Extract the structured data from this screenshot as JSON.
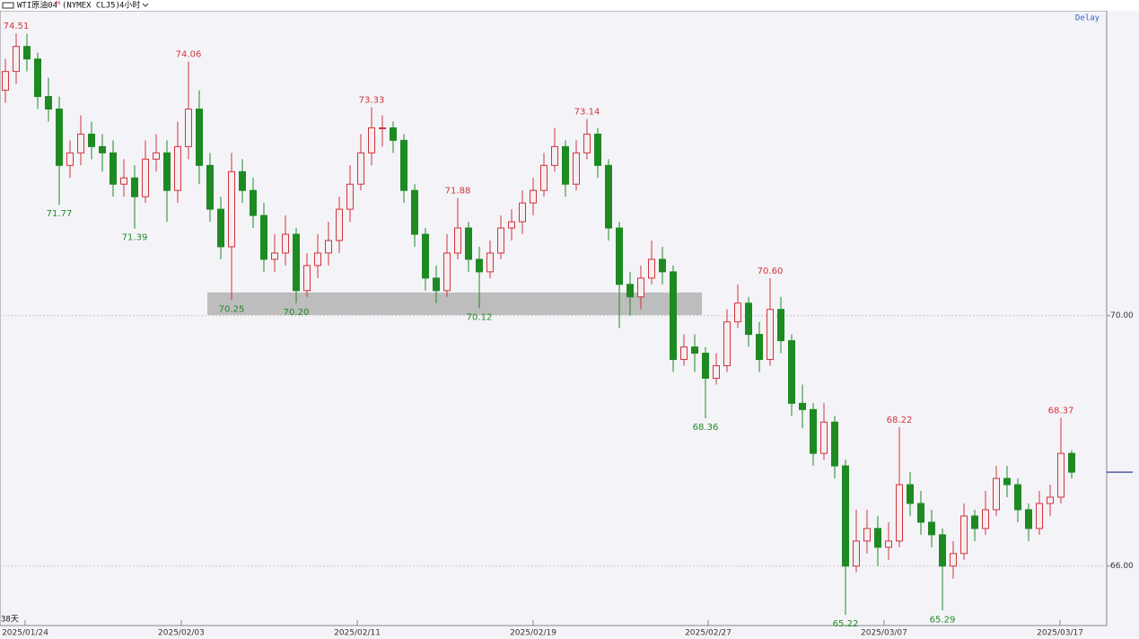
{
  "header": {
    "symbol": "WTI原油04",
    "suffix": "M",
    "exchange": "(NYMEX CLJ5)",
    "period": "4小时",
    "status": "Delay",
    "footer": "38天"
  },
  "chart_data": {
    "type": "candlestick",
    "up_color": "#d0343c",
    "down_color": "#1d8a22",
    "grid": true,
    "ylim": [
      65.05,
      74.87
    ],
    "yticks": [
      {
        "value": 66,
        "label": "66.00"
      },
      {
        "value": 70,
        "label": "70.00"
      }
    ],
    "xticks": [
      {
        "value": 1.83,
        "label": "2025/01/24"
      },
      {
        "value": 16.33,
        "label": "2025/02/03"
      },
      {
        "value": 32.67,
        "label": "2025/02/11"
      },
      {
        "value": 49,
        "label": "2025/02/19"
      },
      {
        "value": 65.25,
        "label": "2025/02/27"
      },
      {
        "value": 81.58,
        "label": "2025/03/07"
      },
      {
        "value": 97.92,
        "label": "2025/03/17"
      }
    ],
    "candles": [
      [
        73.6,
        74.1,
        73.4,
        73.9
      ],
      [
        73.9,
        74.51,
        73.7,
        74.3
      ],
      [
        74.3,
        74.5,
        73.9,
        74.1
      ],
      [
        74.1,
        74.2,
        73.3,
        73.5
      ],
      [
        73.5,
        73.8,
        73.1,
        73.3
      ],
      [
        73.3,
        73.5,
        71.77,
        72.4
      ],
      [
        72.4,
        72.8,
        72.2,
        72.6
      ],
      [
        72.6,
        73.2,
        72.4,
        72.9
      ],
      [
        72.9,
        73.1,
        72.5,
        72.7
      ],
      [
        72.7,
        72.9,
        72.3,
        72.6
      ],
      [
        72.6,
        72.8,
        71.9,
        72.1
      ],
      [
        72.1,
        72.5,
        71.9,
        72.2
      ],
      [
        72.2,
        72.4,
        71.39,
        71.9
      ],
      [
        71.9,
        72.8,
        71.8,
        72.5
      ],
      [
        72.5,
        72.9,
        72.3,
        72.6
      ],
      [
        72.6,
        72.8,
        71.5,
        72.0
      ],
      [
        72.0,
        73.1,
        71.8,
        72.7
      ],
      [
        72.7,
        74.06,
        72.5,
        73.3
      ],
      [
        73.3,
        73.6,
        72.1,
        72.4
      ],
      [
        72.4,
        72.6,
        71.5,
        71.7
      ],
      [
        71.7,
        71.9,
        70.9,
        71.1
      ],
      [
        71.1,
        72.6,
        70.25,
        72.3
      ],
      [
        72.3,
        72.5,
        71.8,
        72.0
      ],
      [
        72.0,
        72.2,
        71.4,
        71.6
      ],
      [
        71.6,
        71.8,
        70.7,
        70.9
      ],
      [
        70.9,
        71.3,
        70.7,
        71.0
      ],
      [
        71.0,
        71.6,
        70.8,
        71.3
      ],
      [
        71.3,
        71.4,
        70.2,
        70.4
      ],
      [
        70.4,
        71.0,
        70.3,
        70.8
      ],
      [
        70.8,
        71.3,
        70.6,
        71.0
      ],
      [
        71.0,
        71.5,
        70.8,
        71.2
      ],
      [
        71.2,
        71.9,
        71.0,
        71.7
      ],
      [
        71.7,
        72.4,
        71.5,
        72.1
      ],
      [
        72.1,
        72.9,
        72.0,
        72.6
      ],
      [
        72.6,
        73.33,
        72.4,
        73.0
      ],
      [
        73.0,
        73.2,
        72.7,
        73.0
      ],
      [
        73.0,
        73.1,
        72.6,
        72.8
      ],
      [
        72.8,
        72.9,
        71.8,
        72.0
      ],
      [
        72.0,
        72.1,
        71.1,
        71.3
      ],
      [
        71.3,
        71.4,
        70.4,
        70.6
      ],
      [
        70.6,
        70.8,
        70.2,
        70.4
      ],
      [
        70.4,
        71.3,
        70.3,
        71.0
      ],
      [
        71.0,
        71.88,
        70.9,
        71.4
      ],
      [
        71.4,
        71.5,
        70.7,
        70.9
      ],
      [
        70.9,
        71.1,
        70.12,
        70.7
      ],
      [
        70.7,
        71.2,
        70.6,
        71.0
      ],
      [
        71.0,
        71.6,
        70.9,
        71.4
      ],
      [
        71.4,
        71.7,
        71.2,
        71.5
      ],
      [
        71.5,
        72.0,
        71.3,
        71.8
      ],
      [
        71.8,
        72.2,
        71.6,
        72.0
      ],
      [
        72.0,
        72.6,
        71.9,
        72.4
      ],
      [
        72.4,
        73.0,
        72.3,
        72.7
      ],
      [
        72.7,
        72.8,
        71.9,
        72.1
      ],
      [
        72.1,
        72.8,
        72.0,
        72.6
      ],
      [
        72.6,
        73.14,
        72.5,
        72.9
      ],
      [
        72.9,
        73.0,
        72.2,
        72.4
      ],
      [
        72.4,
        72.5,
        71.2,
        71.4
      ],
      [
        71.4,
        71.5,
        69.8,
        70.5
      ],
      [
        70.5,
        70.7,
        70.0,
        70.3
      ],
      [
        70.3,
        70.8,
        70.1,
        70.6
      ],
      [
        70.6,
        71.2,
        70.5,
        70.9
      ],
      [
        70.9,
        71.1,
        70.5,
        70.7
      ],
      [
        70.7,
        70.8,
        69.1,
        69.3
      ],
      [
        69.3,
        69.7,
        69.2,
        69.5
      ],
      [
        69.5,
        69.7,
        69.1,
        69.4
      ],
      [
        69.4,
        69.5,
        68.36,
        69.0
      ],
      [
        69.0,
        69.4,
        68.9,
        69.2
      ],
      [
        69.2,
        70.1,
        69.1,
        69.9
      ],
      [
        69.9,
        70.5,
        69.8,
        70.2
      ],
      [
        70.2,
        70.3,
        69.5,
        69.7
      ],
      [
        69.7,
        69.9,
        69.1,
        69.3
      ],
      [
        69.3,
        70.6,
        69.2,
        70.1
      ],
      [
        70.1,
        70.3,
        69.4,
        69.6
      ],
      [
        69.6,
        69.7,
        68.4,
        68.6
      ],
      [
        68.6,
        68.9,
        68.2,
        68.5
      ],
      [
        68.5,
        68.6,
        67.6,
        67.8
      ],
      [
        67.8,
        68.6,
        67.7,
        68.3
      ],
      [
        68.3,
        68.4,
        67.4,
        67.6
      ],
      [
        67.6,
        67.7,
        65.22,
        66.0
      ],
      [
        66.0,
        66.9,
        65.9,
        66.4
      ],
      [
        66.4,
        66.9,
        66.2,
        66.6
      ],
      [
        66.6,
        66.8,
        66.0,
        66.3
      ],
      [
        66.3,
        66.7,
        66.1,
        66.4
      ],
      [
        66.4,
        68.22,
        66.3,
        67.3
      ],
      [
        67.3,
        67.5,
        66.8,
        67.0
      ],
      [
        67.0,
        67.2,
        66.5,
        66.7
      ],
      [
        66.7,
        66.9,
        66.3,
        66.5
      ],
      [
        66.5,
        66.6,
        65.29,
        66.0
      ],
      [
        66.0,
        66.4,
        65.8,
        66.2
      ],
      [
        66.2,
        67.0,
        66.1,
        66.8
      ],
      [
        66.8,
        66.9,
        66.4,
        66.6
      ],
      [
        66.6,
        67.2,
        66.5,
        66.9
      ],
      [
        66.9,
        67.6,
        66.8,
        67.4
      ],
      [
        67.4,
        67.6,
        67.1,
        67.3
      ],
      [
        67.3,
        67.4,
        66.7,
        66.9
      ],
      [
        66.9,
        67.0,
        66.4,
        66.6
      ],
      [
        66.6,
        67.2,
        66.5,
        67.0
      ],
      [
        67.0,
        67.3,
        66.8,
        67.1
      ],
      [
        67.1,
        68.37,
        67.0,
        67.8
      ],
      [
        67.8,
        67.85,
        67.4,
        67.5
      ]
    ],
    "annotations": [
      {
        "index": 1,
        "text": "74.51",
        "position": "above"
      },
      {
        "index": 5,
        "text": "71.77",
        "position": "below"
      },
      {
        "index": 12,
        "text": "71.39",
        "position": "below"
      },
      {
        "index": 17,
        "text": "74.06",
        "position": "above"
      },
      {
        "index": 21,
        "text": "70.25",
        "position": "below"
      },
      {
        "index": 27,
        "text": "70.20",
        "position": "below"
      },
      {
        "index": 34,
        "text": "73.33",
        "position": "above"
      },
      {
        "index": 42,
        "text": "71.88",
        "position": "above"
      },
      {
        "index": 44,
        "text": "70.12",
        "position": "below"
      },
      {
        "index": 54,
        "text": "73.14",
        "position": "above"
      },
      {
        "index": 65,
        "text": "68.36",
        "position": "below"
      },
      {
        "index": 71,
        "text": "70.60",
        "position": "above"
      },
      {
        "index": 78,
        "text": "65.22",
        "position": "below"
      },
      {
        "index": 83,
        "text": "68.22",
        "position": "above"
      },
      {
        "index": 87,
        "text": "65.29",
        "position": "below"
      },
      {
        "index": 98,
        "text": "68.37",
        "position": "above"
      }
    ],
    "zones": [
      {
        "from": 18.75,
        "to": 64.67,
        "low": 70.01,
        "high": 70.37,
        "color": "#bdbdbd"
      }
    ]
  }
}
